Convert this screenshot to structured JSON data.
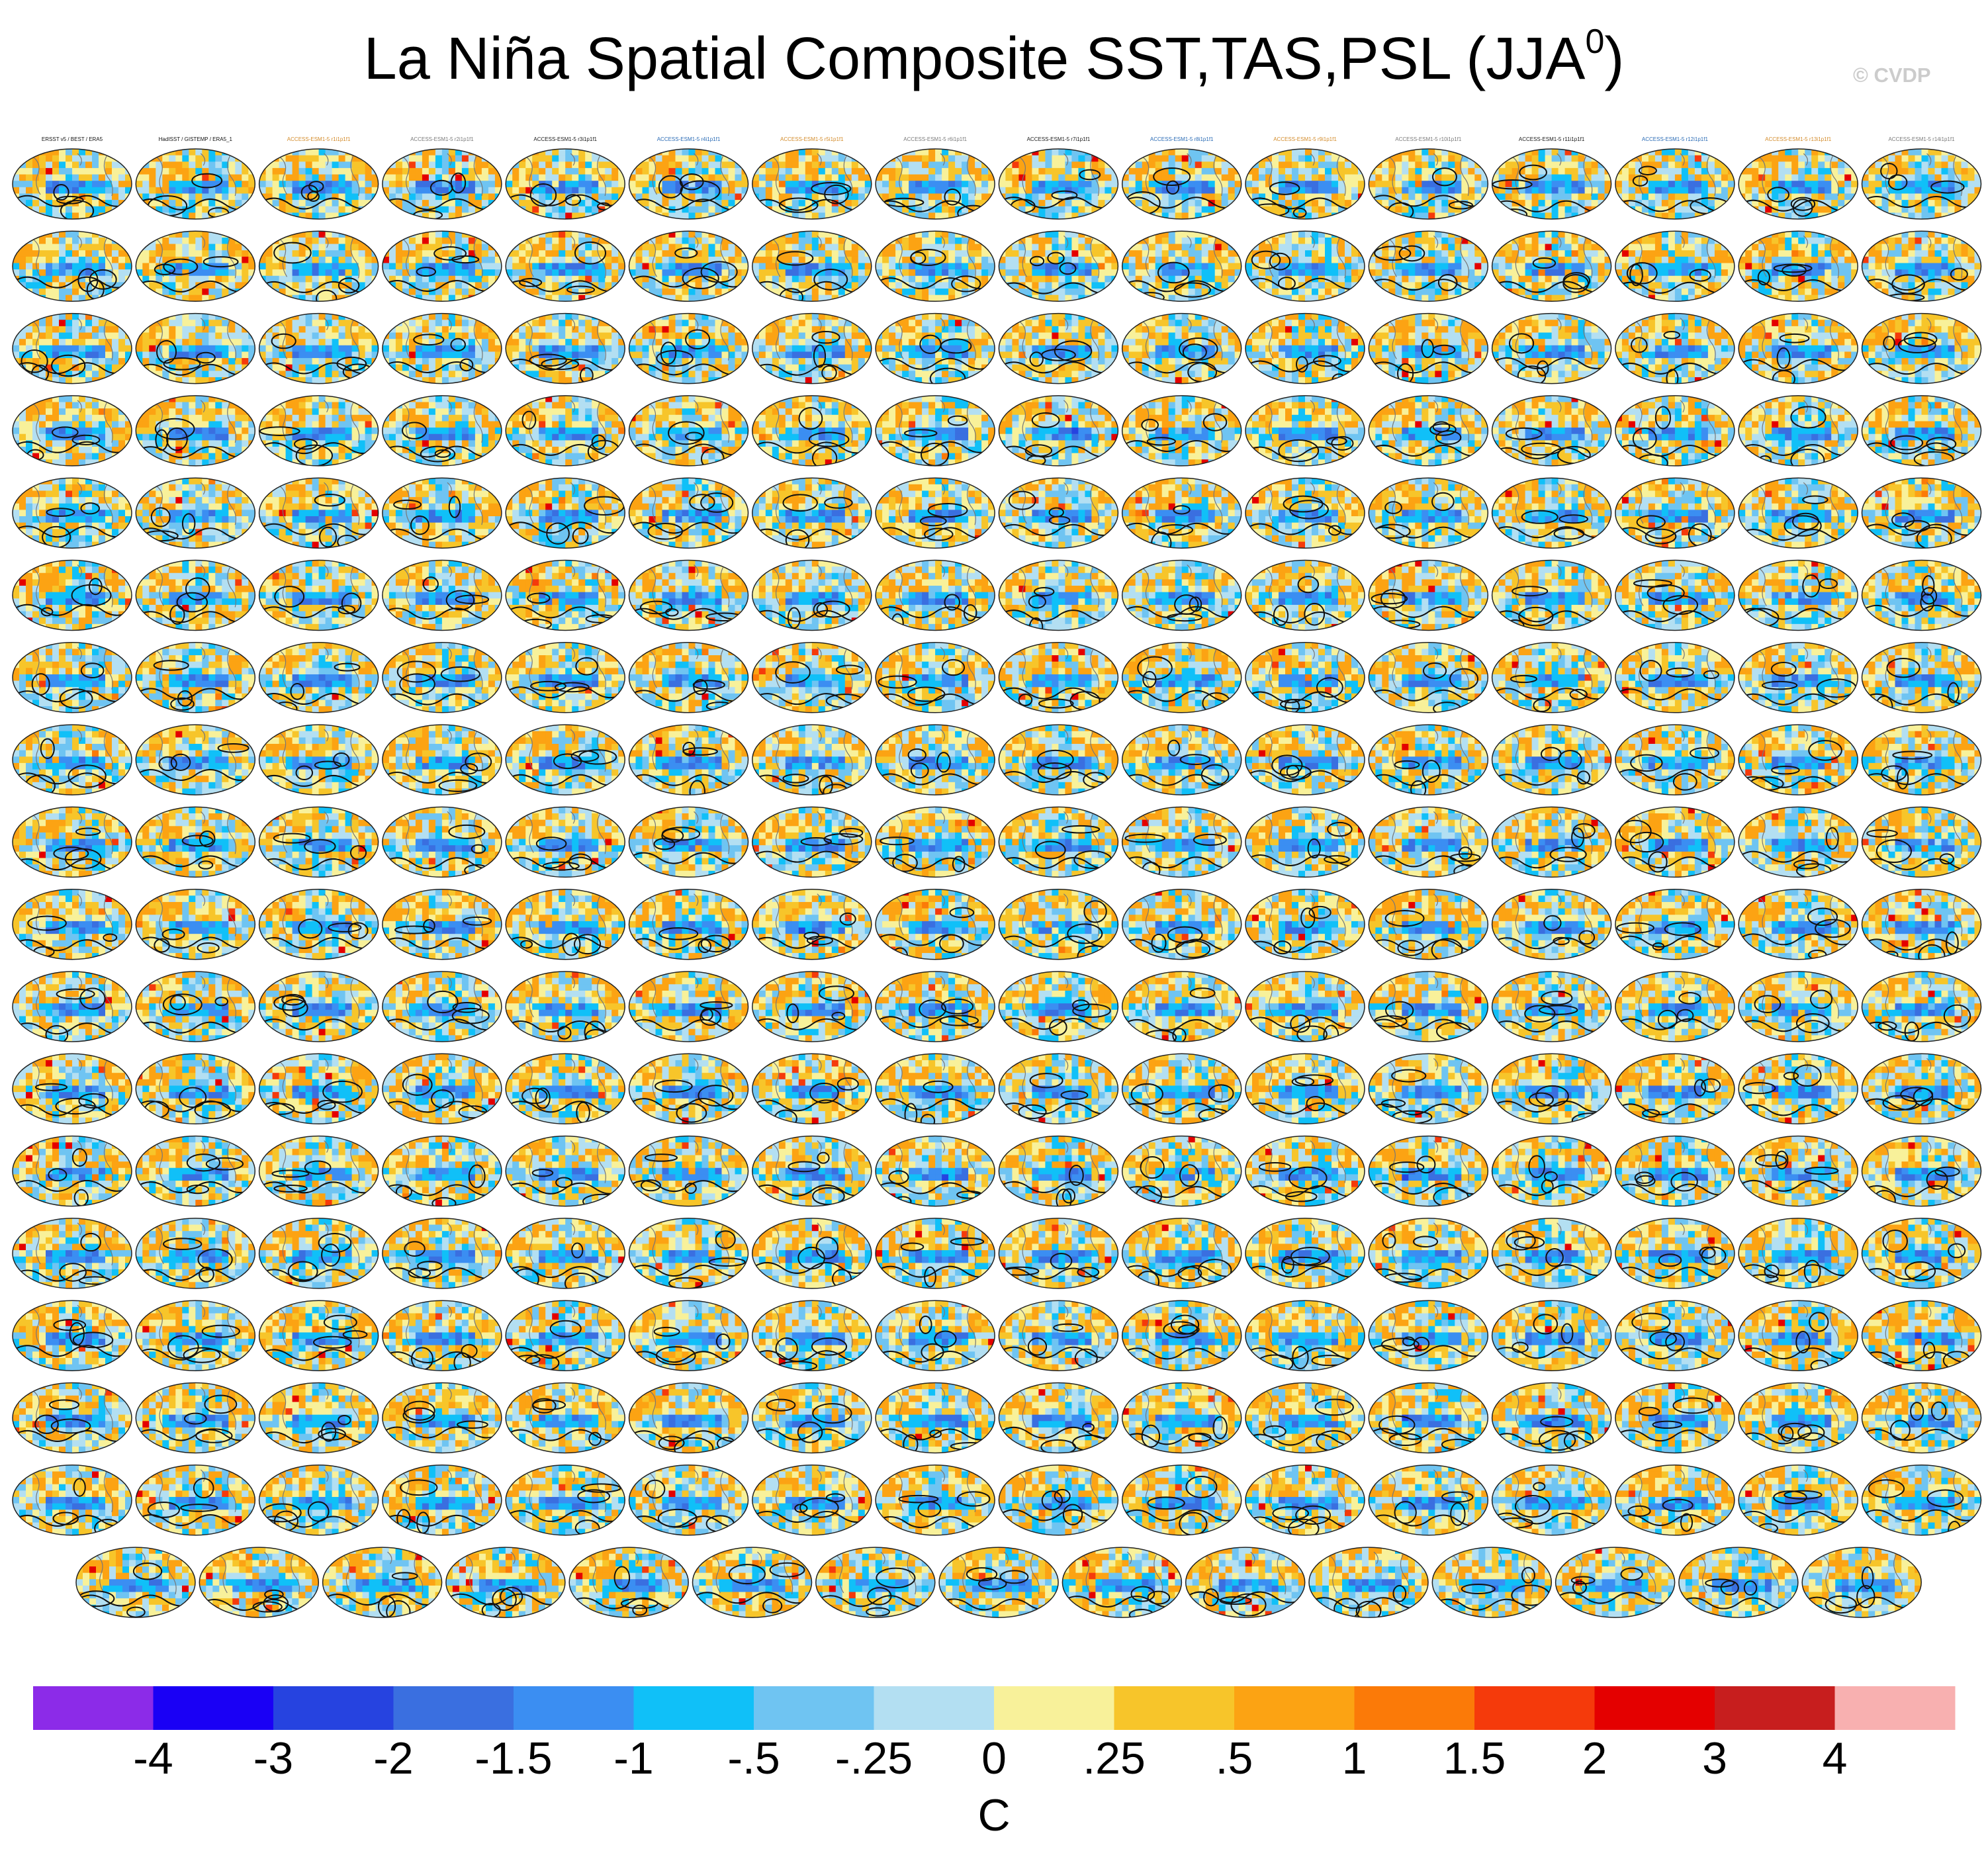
{
  "title": {
    "main": "La Niña Spatial Composite SST,TAS,PSL (JJA",
    "superscript": "0",
    "close": ")"
  },
  "credit": "© CVDP",
  "panel_labels": [
    "ERSST v5 / BEST / ERA5",
    "HadISST / GISTEMP / ERA5_1",
    "ACCESS-ESM1-5 r1i1p1f1",
    "ACCESS-ESM1-5 r2i1p1f1",
    "ACCESS-ESM1-5 r3i1p1f1",
    "ACCESS-ESM1-5 r4i1p1f1",
    "ACCESS-ESM1-5 r5i1p1f1",
    "ACCESS-ESM1-5 r6i1p1f1",
    "ACCESS-ESM1-5 r7i1p1f1",
    "ACCESS-ESM1-5 r8i1p1f1",
    "ACCESS-ESM1-5 r9i1p1f1",
    "ACCESS-ESM1-5 r10i1p1f1",
    "ACCESS-ESM1-5 r11i1p1f1",
    "ACCESS-ESM1-5 r12i1p1f1",
    "ACCESS-ESM1-5 r13i1p1f1",
    "ACCESS-ESM1-5 r14i1p1f1"
  ],
  "chart_data": {
    "type": "heatmap",
    "description_of_layout": "small-multiple grid of global map composites",
    "rows": 18,
    "columns": 16,
    "last_row_columns": 15,
    "colorbar": {
      "levels": [
        "-4",
        "-3",
        "-2",
        "-1.5",
        "-1",
        "-.5",
        "-.25",
        "0",
        ".25",
        ".5",
        "1",
        "1.5",
        "2",
        "3",
        "4"
      ],
      "colors": [
        "#8c2be8",
        "#1a00f5",
        "#2643e0",
        "#3a6fe0",
        "#3b8ef2",
        "#10c0f8",
        "#6fc4f2",
        "#b3dff2",
        "#f8f19a",
        "#f7c52a",
        "#fca313",
        "#fb7a08",
        "#f53a0b",
        "#e40000",
        "#c71e1e",
        "#f8b0b0"
      ],
      "unit": "C"
    }
  }
}
